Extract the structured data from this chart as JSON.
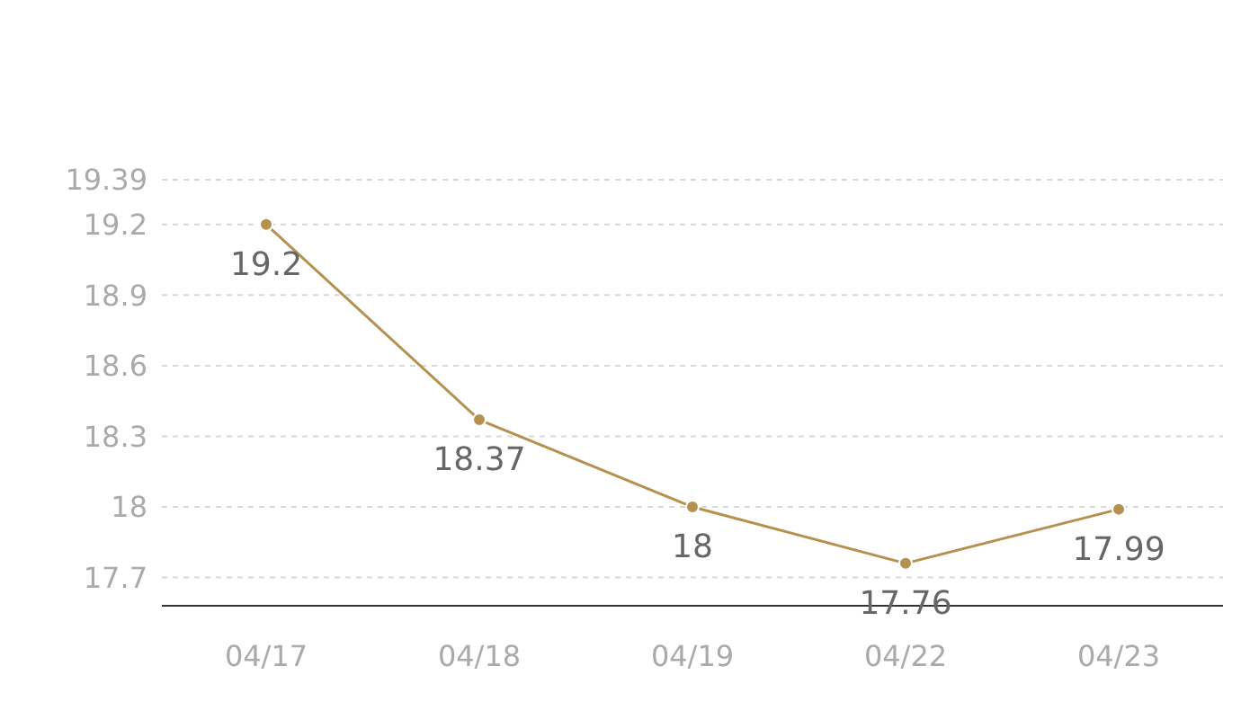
{
  "chart_data": {
    "type": "line",
    "categories": [
      "04/17",
      "04/18",
      "04/19",
      "04/22",
      "04/23"
    ],
    "series": [
      {
        "color": "#b5914f",
        "values": [
          19.2,
          18.37,
          18,
          17.76,
          17.99
        ]
      }
    ],
    "ylim": [
      17.58,
      19.39
    ],
    "yticks": [
      17.7,
      18,
      18.3,
      18.6,
      18.9,
      19.2,
      19.39
    ],
    "grid": "y",
    "marker": "circle",
    "line_style": "solid",
    "data_labels": true
  }
}
